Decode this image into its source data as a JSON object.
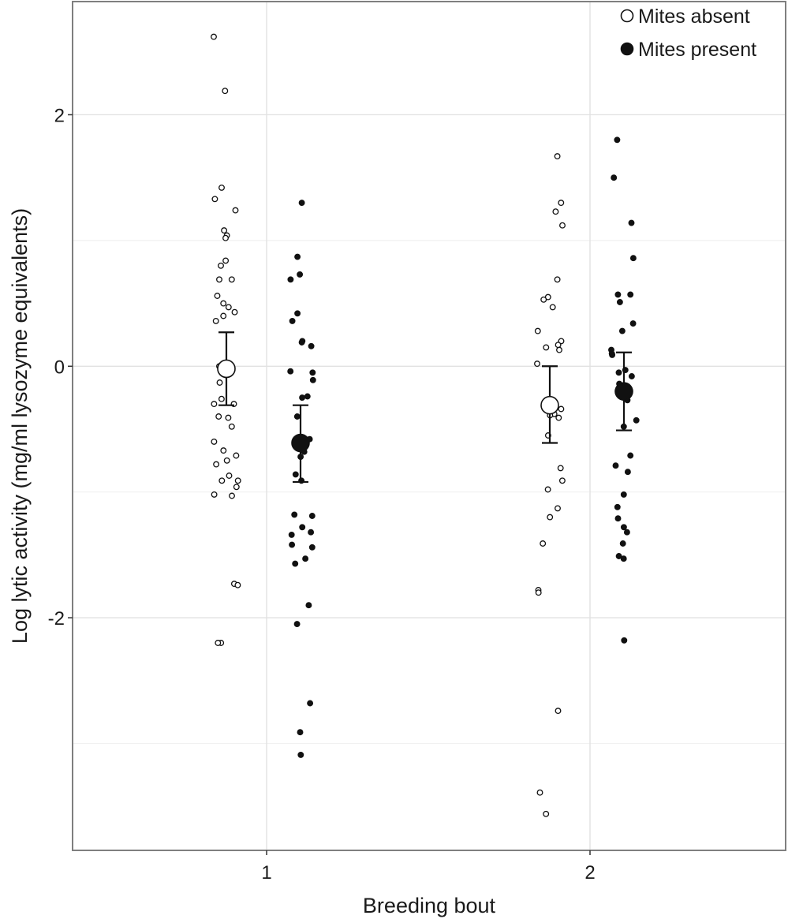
{
  "chart_data": {
    "type": "scatter",
    "xlabel": "Breeding bout",
    "ylabel": "Log lytic activity (mg/ml lysozyme equivalents)",
    "categories": [
      "1",
      "2"
    ],
    "ylim": [
      -3.85,
      2.9
    ],
    "yticks": [
      -2,
      0,
      2
    ],
    "ytick_labels": [
      "-2",
      "0",
      "2"
    ],
    "grid": true,
    "legend_position": "top-right",
    "series": [
      {
        "name": "Mites absent",
        "marker": "open-circle",
        "color": "#111111",
        "fill": "#ffffff",
        "points": {
          "1": [
            2.62,
            2.19,
            1.42,
            1.33,
            1.24,
            1.08,
            1.04,
            1.02,
            0.84,
            0.8,
            0.69,
            0.69,
            0.56,
            0.5,
            0.47,
            0.43,
            0.4,
            0.36,
            0.0,
            -0.02,
            -0.03,
            -0.05,
            -0.07,
            -0.13,
            -0.26,
            -0.3,
            -0.3,
            -0.4,
            -0.41,
            -0.48,
            -0.6,
            -0.67,
            -0.71,
            -0.75,
            -0.78,
            -0.87,
            -0.91,
            -0.91,
            -0.96,
            -1.02,
            -1.03,
            -1.73,
            -1.74,
            -2.2,
            -2.2
          ],
          "2": [
            1.67,
            1.3,
            1.23,
            1.12,
            0.69,
            0.55,
            0.53,
            0.47,
            0.28,
            0.2,
            0.17,
            0.15,
            0.13,
            0.02,
            -0.33,
            -0.34,
            -0.36,
            -0.38,
            -0.39,
            -0.41,
            -0.55,
            -0.81,
            -0.91,
            -0.98,
            -1.13,
            -1.2,
            -1.41,
            -1.78,
            -1.8,
            -2.74,
            -3.39,
            -3.56
          ]
        },
        "mean": {
          "1": -0.02,
          "2": -0.31
        },
        "error": {
          "1": [
            -0.31,
            0.27
          ],
          "2": [
            -0.61,
            0.0
          ]
        }
      },
      {
        "name": "Mites present",
        "marker": "filled-circle",
        "color": "#111111",
        "fill": "#111111",
        "points": {
          "1": [
            1.3,
            0.87,
            0.73,
            0.69,
            0.42,
            0.36,
            0.2,
            0.19,
            0.16,
            -0.04,
            -0.05,
            -0.11,
            -0.24,
            -0.25,
            -0.4,
            -0.58,
            -0.68,
            -0.72,
            -0.86,
            -0.91,
            -1.18,
            -1.19,
            -1.28,
            -1.32,
            -1.34,
            -1.42,
            -1.44,
            -1.53,
            -1.57,
            -1.9,
            -2.05,
            -2.68,
            -2.91,
            -3.09
          ],
          "2": [
            1.8,
            1.5,
            1.14,
            0.86,
            0.57,
            0.57,
            0.51,
            0.34,
            0.28,
            0.13,
            0.1,
            0.09,
            -0.03,
            -0.05,
            -0.08,
            -0.14,
            -0.27,
            -0.43,
            -0.48,
            -0.71,
            -0.79,
            -0.84,
            -1.02,
            -1.12,
            -1.21,
            -1.28,
            -1.32,
            -1.41,
            -1.51,
            -1.53,
            -2.18
          ]
        },
        "mean": {
          "1": -0.61,
          "2": -0.2
        },
        "error": {
          "1": [
            -0.92,
            -0.31
          ],
          "2": [
            -0.51,
            0.11
          ]
        }
      }
    ]
  }
}
